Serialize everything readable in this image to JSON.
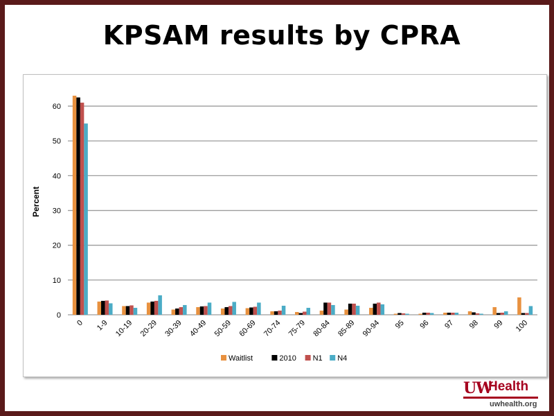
{
  "page": {
    "title": "KPSAM results by CPRA"
  },
  "logo": {
    "uw": "UW",
    "health": "Health",
    "url": "uwhealth.org"
  },
  "colors": {
    "Waitlist": "#e8913f",
    "2010": "#000000",
    "N1": "#c0504d",
    "N4": "#4bacc6",
    "grid": "#9c9c9c"
  },
  "chart_data": {
    "type": "bar",
    "title": "",
    "xlabel": "",
    "ylabel": "Percent",
    "ylim": [
      0,
      65
    ],
    "yticks": [
      0,
      10,
      20,
      30,
      40,
      50,
      60
    ],
    "grid": true,
    "legend": "bottom",
    "categories": [
      "0",
      "1-9",
      "10-19",
      "20-29",
      "30-39",
      "40-49",
      "50-59",
      "60-69",
      "70-74",
      "75-79",
      "80-84",
      "85-89",
      "90-94",
      "95",
      "96",
      "97",
      "98",
      "99",
      "100"
    ],
    "series": [
      {
        "name": "Waitlist",
        "values": [
          63,
          3.8,
          2.5,
          3.5,
          1.5,
          2.2,
          1.8,
          1.9,
          1.0,
          0.8,
          1.2,
          1.5,
          2.0,
          0.3,
          0.3,
          0.6,
          1.0,
          2.2,
          5.0
        ]
      },
      {
        "name": "2010",
        "values": [
          62.5,
          4.0,
          2.5,
          3.8,
          1.8,
          2.4,
          2.2,
          2.1,
          1.0,
          0.5,
          3.5,
          3.2,
          3.2,
          0.5,
          0.6,
          0.6,
          0.7,
          0.5,
          0.5
        ]
      },
      {
        "name": "N1",
        "values": [
          61,
          4.1,
          2.7,
          4.0,
          2.2,
          2.5,
          2.5,
          2.3,
          1.2,
          0.9,
          3.5,
          3.2,
          3.5,
          0.4,
          0.6,
          0.6,
          0.4,
          0.6,
          0.5
        ]
      },
      {
        "name": "N4",
        "values": [
          55,
          3.3,
          2.0,
          5.6,
          2.8,
          3.5,
          3.7,
          3.5,
          2.6,
          2.0,
          2.8,
          2.6,
          3.0,
          0.3,
          0.5,
          0.6,
          0.3,
          1.0,
          2.5
        ]
      }
    ]
  }
}
